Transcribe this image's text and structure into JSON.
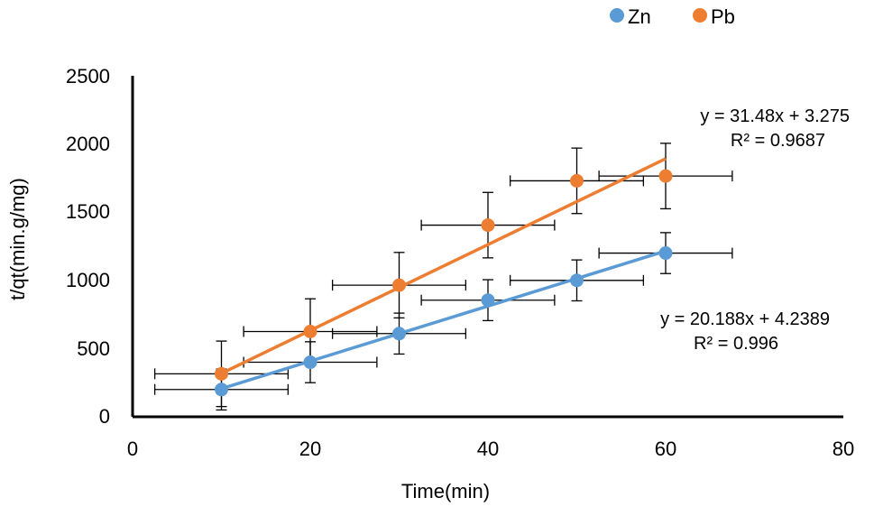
{
  "chart_data": {
    "type": "scatter",
    "title": "",
    "xlabel": "Time(min)",
    "ylabel": "t/qt(min.g/mg)",
    "xlim": [
      0,
      80
    ],
    "ylim": [
      0,
      2500
    ],
    "xticks": [
      "0",
      "20",
      "40",
      "60",
      "80"
    ],
    "yticks": [
      "0",
      "500",
      "1000",
      "1500",
      "2000",
      "2500"
    ],
    "grid": false,
    "legend_position": "top-right",
    "series": [
      {
        "name": "Zn",
        "color": "#5B9BD5",
        "x": [
          10,
          20,
          30,
          40,
          50,
          60
        ],
        "y": [
          200,
          400,
          610,
          855,
          1000,
          1200
        ],
        "x_error": 7.5,
        "y_error": 150,
        "trendline": {
          "slope": 20.188,
          "intercept": 4.2389,
          "x_range": [
            10,
            60
          ]
        },
        "equation": "y = 20.188x + 4.2389",
        "r2": "R² = 0.996"
      },
      {
        "name": "Pb",
        "color": "#ED7D31",
        "x": [
          10,
          20,
          30,
          40,
          50,
          60
        ],
        "y": [
          315,
          625,
          965,
          1405,
          1730,
          1765
        ],
        "x_error": 7.5,
        "y_error": 240,
        "trendline": {
          "slope": 31.48,
          "intercept": 3.275,
          "x_range": [
            10,
            60
          ]
        },
        "equation": "y = 31.48x + 3.275",
        "r2": "R² = 0.9687"
      }
    ]
  }
}
